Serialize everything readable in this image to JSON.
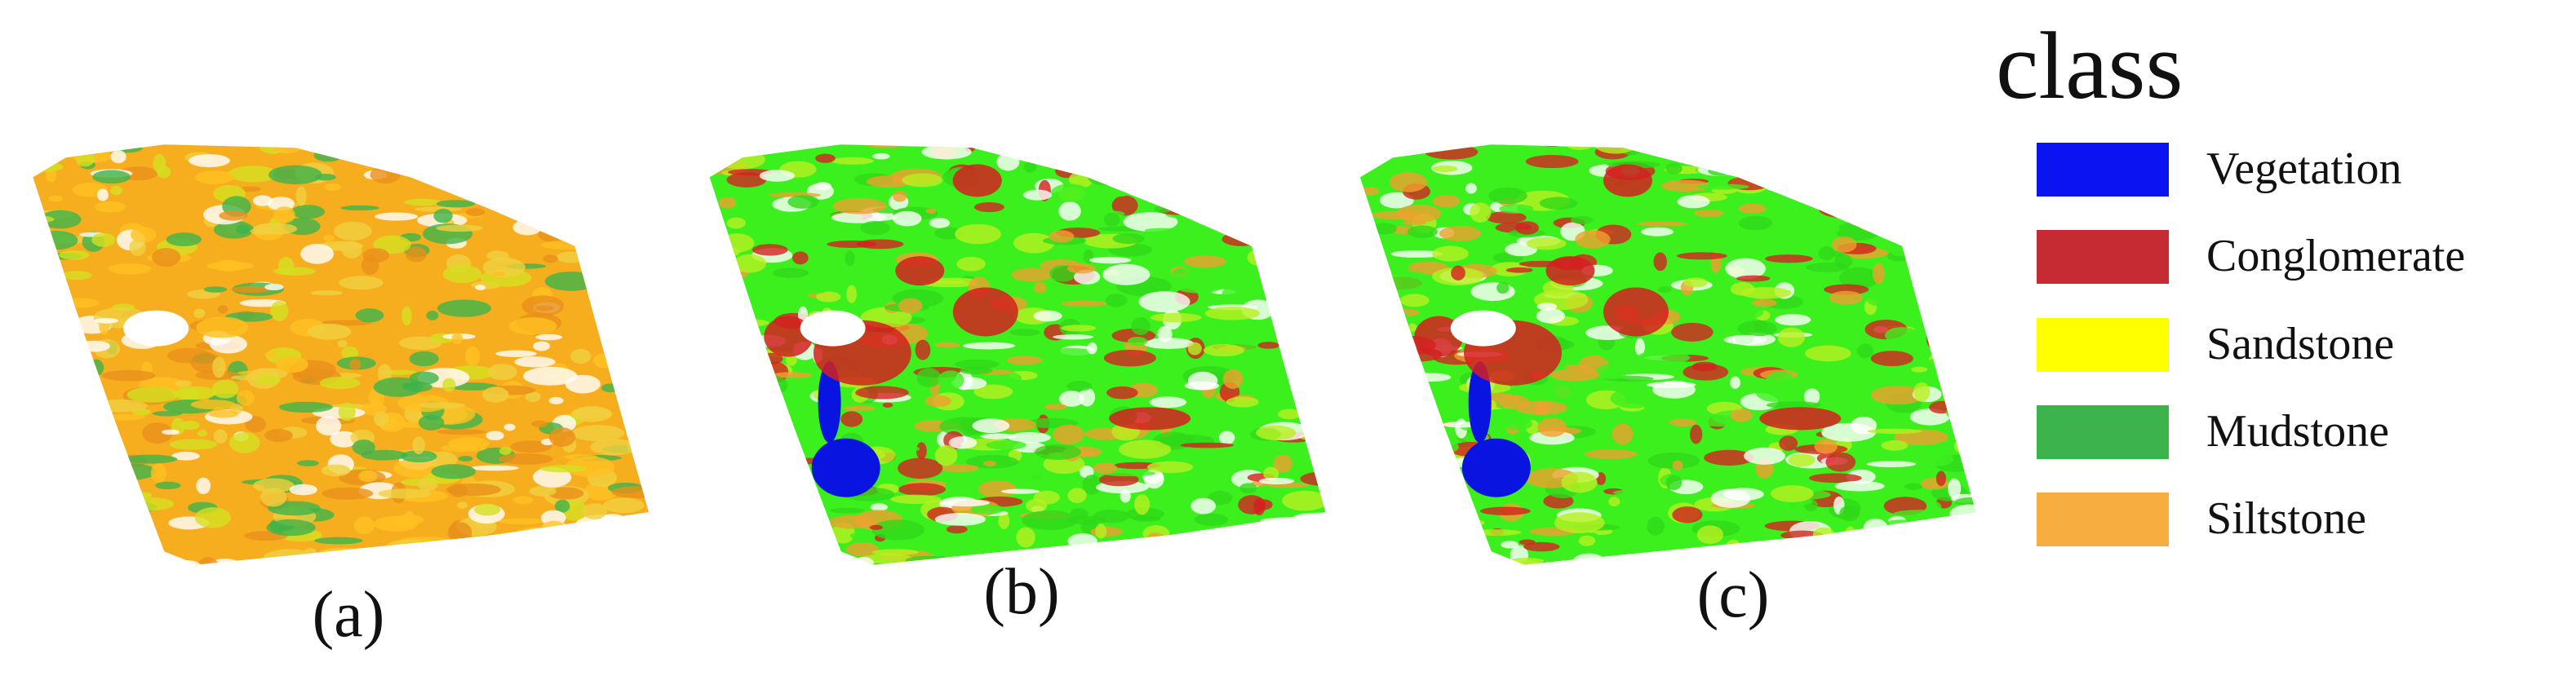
{
  "panels": [
    {
      "label": "(a)"
    },
    {
      "label": "(b)"
    },
    {
      "label": "(c)"
    }
  ],
  "legend": {
    "title": "class",
    "items": [
      {
        "label": "Vegetation",
        "color": "#0a14f0"
      },
      {
        "label": "Conglomerate",
        "color": "#c62a32"
      },
      {
        "label": "Sandstone",
        "color": "#ffff00"
      },
      {
        "label": "Mudstone",
        "color": "#3cb44b"
      },
      {
        "label": "Siltstone",
        "color": "#f7ae3e"
      }
    ]
  }
}
